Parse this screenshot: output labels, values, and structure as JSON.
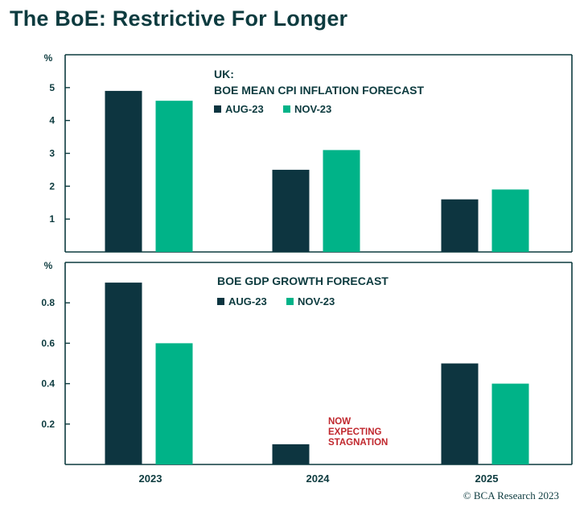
{
  "page": {
    "title": "The BoE: Restrictive For Longer",
    "credit": "© BCA Research 2023"
  },
  "colors": {
    "aug": "#0d3540",
    "nov": "#00b388",
    "frame": "#0d3b3f",
    "annotation": "#c0272d"
  },
  "chart_data": [
    {
      "type": "bar",
      "title_lines": [
        "UK:",
        "BOE MEAN CPI INFLATION FORECAST"
      ],
      "unit_label": "%",
      "categories": [
        "2023",
        "2024",
        "2025"
      ],
      "ylim": [
        0,
        6
      ],
      "yticks": [
        1,
        2,
        3,
        4,
        5
      ],
      "ytick_labels": [
        "1",
        "2",
        "3",
        "4",
        "5"
      ],
      "grid": false,
      "legend_placement": "top-center",
      "series": [
        {
          "name": "AUG-23",
          "values": [
            4.9,
            2.5,
            1.6
          ]
        },
        {
          "name": "NOV-23",
          "values": [
            4.6,
            3.1,
            1.9
          ]
        }
      ]
    },
    {
      "type": "bar",
      "title_lines": [
        "BOE GDP GROWTH FORECAST"
      ],
      "unit_label": "%",
      "categories": [
        "2023",
        "2024",
        "2025"
      ],
      "ylim": [
        0,
        1.0
      ],
      "yticks": [
        0.2,
        0.4,
        0.6,
        0.8
      ],
      "ytick_labels": [
        "0.2",
        "0.4",
        "0.6",
        "0.8"
      ],
      "grid": false,
      "legend_placement": "top-center",
      "series": [
        {
          "name": "AUG-23",
          "values": [
            0.9,
            0.1,
            0.5
          ]
        },
        {
          "name": "NOV-23",
          "values": [
            0.6,
            0.0,
            0.4
          ]
        }
      ],
      "annotation": {
        "lines": [
          "NOW",
          "EXPECTING",
          "STAGNATION"
        ],
        "category": "2024"
      }
    }
  ]
}
